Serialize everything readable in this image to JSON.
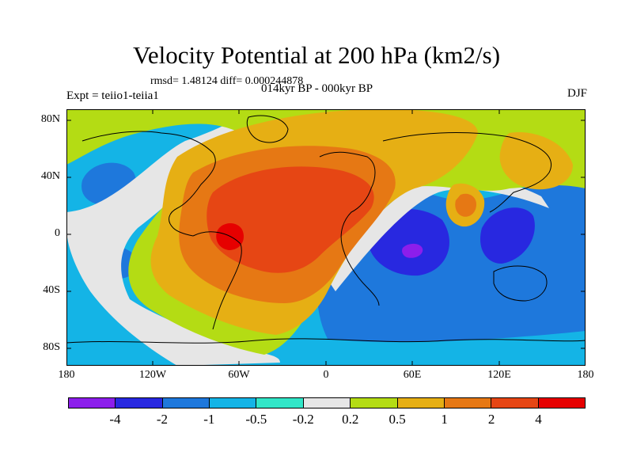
{
  "title": "Velocity Potential at 200 hPa (km2/s)",
  "stats": "rmsd= 1.48124 diff= 0.000244878",
  "experiment": "Expt = teiio1-teiia1",
  "period": "014kyr BP - 000kyr BP",
  "season": "DJF",
  "lat_labels": [
    "80N",
    "40N",
    "0",
    "40S",
    "80S"
  ],
  "lon_labels": [
    "180",
    "120W",
    "60W",
    "0",
    "60E",
    "120E",
    "180"
  ],
  "colorbar": {
    "labels": [
      "-4",
      "-2",
      "-1",
      "-0.5",
      "-0.2",
      "0.2",
      "0.5",
      "1",
      "2",
      "4"
    ],
    "colors": [
      "#8c1eeb",
      "#2828e0",
      "#1e78dc",
      "#14b4e6",
      "#32e6c8",
      "#e6e6e6",
      "#b4dc14",
      "#e6af14",
      "#e67814",
      "#e64614",
      "#e60000"
    ]
  },
  "map_colors": {
    "ocean_base": "#14b4e6",
    "neutral": "#e6e6e6",
    "pos_weak": "#b4dc14",
    "pos_mid": "#e6af14",
    "pos_strong": "#e67814",
    "pos_stronger": "#e64614",
    "pos_max": "#e60000",
    "neg_mid": "#1e78dc",
    "neg_strong": "#2828e0",
    "neg_max": "#8c1eeb"
  }
}
